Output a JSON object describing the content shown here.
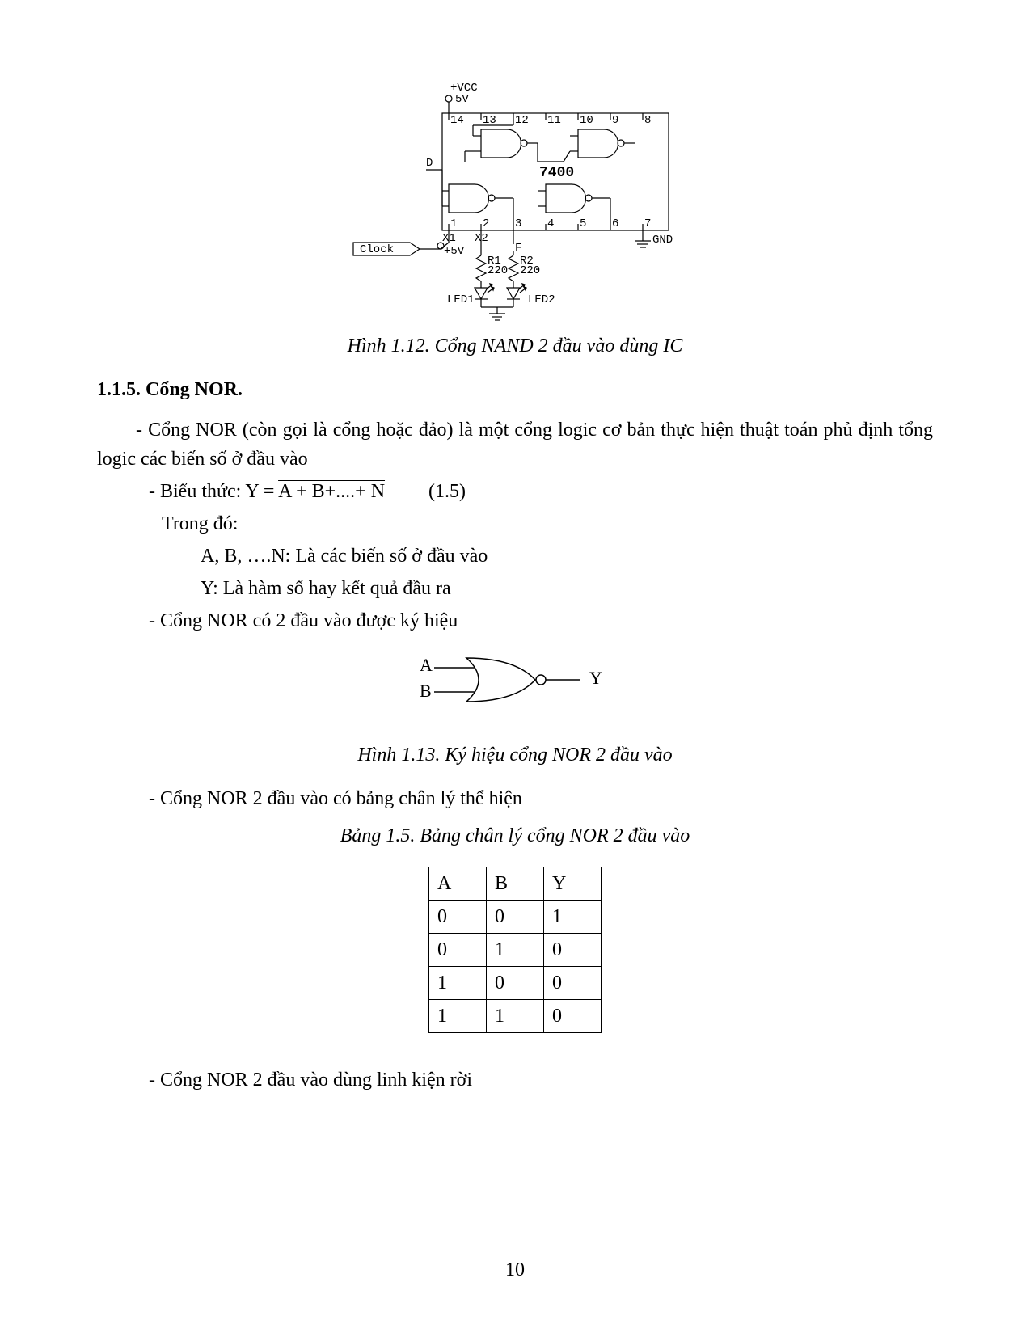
{
  "figure112": {
    "caption": "Hình 1.12. Cổng NAND 2 đầu vào dùng IC",
    "labels": {
      "vcc": "+VCC",
      "v5": "5V",
      "pin14": "14",
      "pin13": "13",
      "pin12": "12",
      "pin11": "11",
      "pin10": "10",
      "pin9": "9",
      "pin8": "8",
      "pin1": "1",
      "pin2": "2",
      "pin3": "3",
      "pin4": "4",
      "pin5": "5",
      "pin6": "6",
      "pin7": "7",
      "chip": "7400",
      "D": "D",
      "X1": "X1",
      "X2": "X2",
      "p5v": "+5V",
      "clock": "Clock",
      "R1": "R1",
      "R1v": "220",
      "R2": "R2",
      "R2v": "220",
      "F": "F",
      "LED1": "LED1",
      "LED2": "LED2",
      "GND": "GND"
    },
    "colors": {
      "stroke": "#000000",
      "fill": "#ffffff"
    },
    "stroke_width": 1.2
  },
  "section": {
    "heading": "1.1.5. Cổng NOR.",
    "p1": "- Cổng NOR (còn gọi là cổng hoặc đảo) là một cổng logic cơ bản thực hiện thuật toán phủ định tổng logic các biến số ở đầu vào",
    "expr_prefix": "- Biểu thức: Y = ",
    "expr_over": "A + B+....+ N",
    "expr_eq": "(1.5)",
    "trongdo": "Trong đó:",
    "abline": "A, B, ….N: Là các biến số ở đầu vào",
    "yline": "Y: Là hàm số hay kết quả đầu ra",
    "nor2": "- Cổng NOR có 2 đầu vào được ký hiệu"
  },
  "figure113": {
    "A": "A",
    "B": "B",
    "Y": "Y",
    "caption": "Hình 1.13. Ký hiệu cổng NOR 2 đầu vào"
  },
  "truth": {
    "intro": "- Cổng NOR 2 đầu vào có bảng chân lý thể hiện",
    "caption": "Bảng 1.5. Bảng chân lý cổng NOR 2 đầu vào",
    "headers": [
      "A",
      "B",
      "Y"
    ],
    "rows": [
      [
        "0",
        "0",
        "1"
      ],
      [
        "0",
        "1",
        "0"
      ],
      [
        "1",
        "0",
        "0"
      ],
      [
        "1",
        "1",
        "0"
      ]
    ]
  },
  "last": "- Cổng NOR 2 đầu vào dùng linh kiện rời",
  "page_number": "10"
}
